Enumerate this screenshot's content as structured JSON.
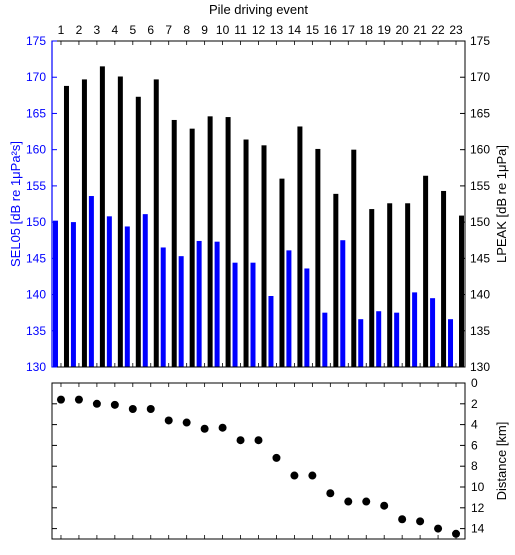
{
  "chart_data": [
    {
      "type": "bar",
      "xlabel": "Pile driving event",
      "ylabel_left": "SEL05 [dB re 1μPa²s]",
      "ylabel_right": "LPEAK [dB re 1μPa]",
      "categories": [
        "1",
        "2",
        "3",
        "4",
        "5",
        "6",
        "7",
        "8",
        "9",
        "10",
        "11",
        "12",
        "13",
        "14",
        "15",
        "16",
        "17",
        "18",
        "19",
        "20",
        "21",
        "22",
        "23"
      ],
      "ylim": [
        130,
        175
      ],
      "yticks": [
        130,
        135,
        140,
        145,
        150,
        155,
        160,
        165,
        170,
        175
      ],
      "series": [
        {
          "name": "SEL05",
          "axis": "left",
          "color": "#0000ff",
          "values": [
            150.2,
            150.0,
            153.6,
            150.8,
            149.4,
            151.1,
            146.5,
            145.3,
            147.4,
            147.3,
            144.4,
            144.4,
            139.8,
            146.1,
            143.6,
            137.5,
            147.5,
            136.6,
            137.7,
            137.5,
            140.3,
            139.5,
            136.6
          ]
        },
        {
          "name": "LPEAK",
          "axis": "right",
          "color": "#000000",
          "values": [
            168.8,
            169.7,
            171.5,
            170.1,
            167.3,
            169.7,
            164.1,
            162.9,
            164.6,
            164.5,
            161.4,
            160.6,
            156.0,
            163.2,
            160.1,
            153.9,
            160.0,
            151.8,
            152.6,
            152.6,
            156.4,
            154.3,
            150.9
          ]
        }
      ],
      "grid": false,
      "colors": {
        "left_axis": "#0000ff",
        "right_axis": "#000000"
      }
    },
    {
      "type": "scatter",
      "ylabel": "Distance [km]",
      "x": [
        1,
        2,
        3,
        4,
        5,
        6,
        7,
        8,
        9,
        10,
        11,
        12,
        13,
        14,
        15,
        16,
        17,
        18,
        19,
        20,
        21,
        22,
        23
      ],
      "y": [
        1.6,
        1.6,
        2.0,
        2.1,
        2.5,
        2.5,
        3.6,
        3.8,
        4.4,
        4.3,
        5.5,
        5.5,
        7.2,
        8.9,
        8.9,
        10.6,
        11.4,
        11.4,
        11.8,
        13.1,
        13.3,
        14.0,
        14.5
      ],
      "ylim": [
        0,
        15
      ],
      "yticks": [
        0,
        2,
        4,
        6,
        8,
        10,
        12,
        14
      ],
      "y_reversed": true,
      "marker_color": "#000000",
      "grid": false
    }
  ]
}
